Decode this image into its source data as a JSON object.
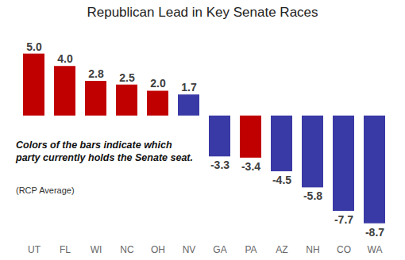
{
  "chart_data": {
    "type": "bar",
    "title": "Republican Lead in Key Senate Races",
    "categories": [
      "UT",
      "FL",
      "WI",
      "NC",
      "OH",
      "NV",
      "GA",
      "PA",
      "AZ",
      "NH",
      "CO",
      "WA"
    ],
    "values": [
      5.0,
      4.0,
      2.8,
      2.5,
      2.0,
      1.7,
      -3.3,
      -3.4,
      -4.5,
      -5.8,
      -7.7,
      -8.7
    ],
    "value_labels": [
      "5.0",
      "4.0",
      "2.8",
      "2.5",
      "2.0",
      "1.7",
      "-3.3",
      "-3.4",
      "-4.5",
      "-5.8",
      "-7.7",
      "-8.7"
    ],
    "colors": [
      "#c00000",
      "#c00000",
      "#c00000",
      "#c00000",
      "#c00000",
      "#3a3aa6",
      "#3a3aa6",
      "#c00000",
      "#3a3aa6",
      "#3a3aa6",
      "#3a3aa6",
      "#3a3aa6"
    ],
    "ylim": [
      -10,
      6
    ],
    "data_labels": true,
    "tick_labels": "x",
    "annotations": [
      "Colors of the bars indicate which party currently holds the Senate seat.",
      "(RCP Average)"
    ]
  }
}
